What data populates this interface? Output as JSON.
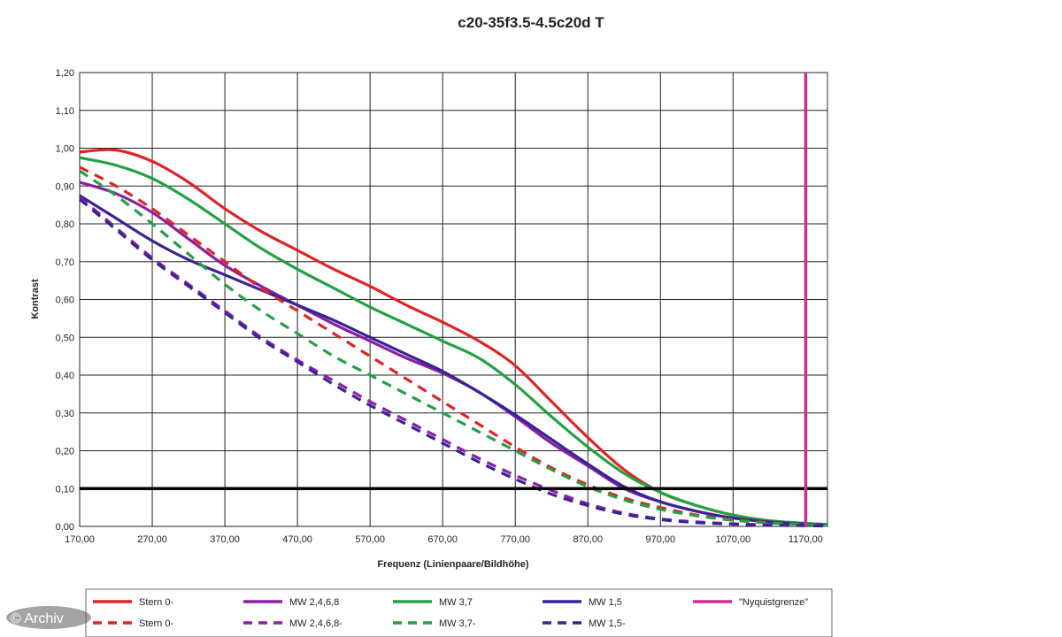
{
  "watermark": "© Archiv",
  "chart_data": {
    "type": "line",
    "title": "c20-35f3.5-4.5c20d T",
    "xlabel": "Frequenz (Linienpaare/Bildhöhe)",
    "ylabel": "Kontrast",
    "xlim": [
      170,
      1200
    ],
    "ylim": [
      0,
      1.2
    ],
    "x_ticks": [
      "170,00",
      "270,00",
      "370,00",
      "470,00",
      "570,00",
      "670,00",
      "770,00",
      "870,00",
      "970,00",
      "1070,00",
      "1170,00"
    ],
    "y_ticks": [
      "0,00",
      "0,10",
      "0,20",
      "0,30",
      "0,40",
      "0,50",
      "0,60",
      "0,70",
      "0,80",
      "0,90",
      "1,00",
      "1,10",
      "1,20"
    ],
    "grid": true,
    "legend_position": "bottom",
    "reference_lines": [
      {
        "orientation": "horizontal",
        "value": 0.1,
        "color": "#000000"
      },
      {
        "orientation": "vertical",
        "value": 1170,
        "color": "#cc2f8f"
      }
    ],
    "series": [
      {
        "name": "Stern 0-",
        "style": "solid",
        "color": "#e02424",
        "x": [
          170,
          220,
          270,
          320,
          370,
          420,
          470,
          520,
          570,
          620,
          670,
          720,
          770,
          820,
          870,
          920,
          970,
          1020,
          1070,
          1120,
          1170,
          1200
        ],
        "y": [
          0.99,
          0.995,
          0.965,
          0.91,
          0.84,
          0.78,
          0.73,
          0.68,
          0.635,
          0.585,
          0.54,
          0.49,
          0.425,
          0.33,
          0.235,
          0.15,
          0.09,
          0.055,
          0.03,
          0.015,
          0.008,
          0.005
        ]
      },
      {
        "name": "MW 2,4,6,8",
        "style": "solid",
        "color": "#8b1fa0",
        "x": [
          170,
          220,
          270,
          320,
          370,
          420,
          470,
          520,
          570,
          620,
          670,
          720,
          770,
          820,
          870,
          920,
          970,
          1020,
          1070,
          1120,
          1170,
          1200
        ],
        "y": [
          0.91,
          0.88,
          0.83,
          0.76,
          0.69,
          0.635,
          0.585,
          0.535,
          0.49,
          0.445,
          0.405,
          0.355,
          0.29,
          0.22,
          0.16,
          0.1,
          0.065,
          0.04,
          0.022,
          0.012,
          0.006,
          0.004
        ]
      },
      {
        "name": "MW 3,7",
        "style": "solid",
        "color": "#23a043",
        "x": [
          170,
          220,
          270,
          320,
          370,
          420,
          470,
          520,
          570,
          620,
          670,
          720,
          770,
          820,
          870,
          920,
          970,
          1020,
          1070,
          1120,
          1170,
          1200
        ],
        "y": [
          0.975,
          0.955,
          0.92,
          0.865,
          0.8,
          0.735,
          0.68,
          0.63,
          0.58,
          0.535,
          0.49,
          0.445,
          0.375,
          0.29,
          0.21,
          0.14,
          0.09,
          0.055,
          0.03,
          0.015,
          0.008,
          0.005
        ]
      },
      {
        "name": "MW 1,5",
        "style": "solid",
        "color": "#3a2395",
        "x": [
          170,
          220,
          270,
          320,
          370,
          420,
          470,
          520,
          570,
          620,
          670,
          720,
          770,
          820,
          870,
          920,
          970,
          1020,
          1070,
          1120,
          1170,
          1200
        ],
        "y": [
          0.875,
          0.815,
          0.755,
          0.705,
          0.665,
          0.625,
          0.585,
          0.545,
          0.5,
          0.455,
          0.41,
          0.355,
          0.295,
          0.23,
          0.165,
          0.105,
          0.065,
          0.04,
          0.022,
          0.012,
          0.006,
          0.004
        ]
      },
      {
        "name": "\"Nyquistgrenze\"",
        "style": "solid",
        "color": "#cc2f8f",
        "x": [
          1170,
          1170
        ],
        "y": [
          0,
          1.2
        ]
      },
      {
        "name": "Stern 0-",
        "style": "dashed",
        "color": "#e02424",
        "x": [
          170,
          220,
          270,
          320,
          370,
          420,
          470,
          520,
          570,
          620,
          670,
          720,
          770,
          820,
          870,
          920,
          970,
          1020,
          1070,
          1120,
          1170,
          1200
        ],
        "y": [
          0.95,
          0.9,
          0.84,
          0.77,
          0.7,
          0.63,
          0.57,
          0.51,
          0.45,
          0.39,
          0.33,
          0.27,
          0.21,
          0.155,
          0.11,
          0.075,
          0.05,
          0.03,
          0.018,
          0.01,
          0.005,
          0.003
        ]
      },
      {
        "name": "MW 2,4,6,8-",
        "style": "dashed",
        "color": "#8b1fa0",
        "x": [
          170,
          220,
          270,
          320,
          370,
          420,
          470,
          520,
          570,
          620,
          670,
          720,
          770,
          820,
          870,
          920,
          970,
          1020,
          1070,
          1120,
          1170,
          1200
        ],
        "y": [
          0.87,
          0.79,
          0.71,
          0.64,
          0.57,
          0.5,
          0.44,
          0.385,
          0.33,
          0.28,
          0.23,
          0.18,
          0.135,
          0.095,
          0.06,
          0.035,
          0.02,
          0.012,
          0.007,
          0.004,
          0.002,
          0.001
        ]
      },
      {
        "name": "MW 3,7-",
        "style": "dashed",
        "color": "#23a043",
        "x": [
          170,
          220,
          270,
          320,
          370,
          420,
          470,
          520,
          570,
          620,
          670,
          720,
          770,
          820,
          870,
          920,
          970,
          1020,
          1070,
          1120,
          1170,
          1200
        ],
        "y": [
          0.94,
          0.875,
          0.8,
          0.72,
          0.64,
          0.57,
          0.51,
          0.45,
          0.4,
          0.35,
          0.3,
          0.25,
          0.2,
          0.15,
          0.105,
          0.07,
          0.045,
          0.028,
          0.016,
          0.009,
          0.005,
          0.003
        ]
      },
      {
        "name": "MW 1,5-",
        "style": "dashed",
        "color": "#3a2395",
        "x": [
          170,
          220,
          270,
          320,
          370,
          420,
          470,
          520,
          570,
          620,
          670,
          720,
          770,
          820,
          870,
          920,
          970,
          1020,
          1070,
          1120,
          1170,
          1200
        ],
        "y": [
          0.865,
          0.785,
          0.705,
          0.635,
          0.565,
          0.495,
          0.435,
          0.375,
          0.32,
          0.27,
          0.22,
          0.17,
          0.125,
          0.085,
          0.055,
          0.032,
          0.018,
          0.01,
          0.006,
          0.003,
          0.002,
          0.001
        ]
      }
    ]
  }
}
